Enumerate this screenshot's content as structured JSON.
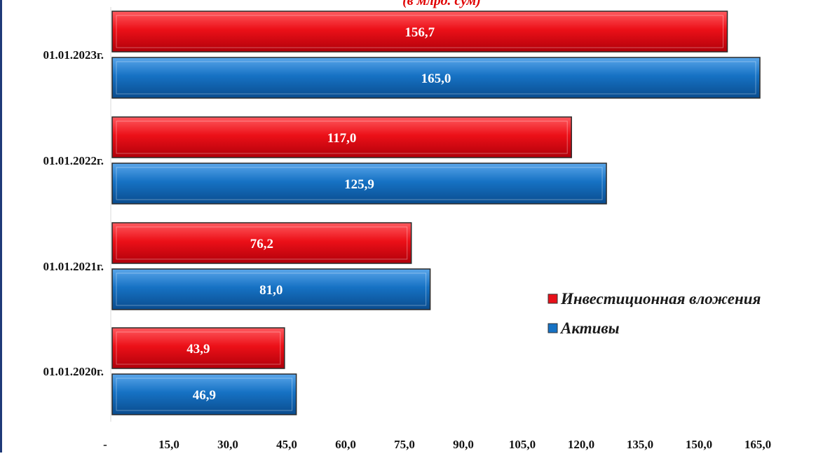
{
  "chart_data": {
    "type": "bar",
    "orientation": "horizontal",
    "subtitle": "(в млрд. сум)",
    "categories": [
      "01.01.2020г.",
      "01.01.2021г.",
      "01.01.2022г.",
      "01.01.2023г."
    ],
    "series": [
      {
        "name": "Инвестиционная вложения",
        "color": "#e8101a",
        "values": [
          43.9,
          76.2,
          117.0,
          156.7
        ],
        "labels": [
          "43,9",
          "76,2",
          "117,0",
          "156,7"
        ]
      },
      {
        "name": "Активы",
        "color": "#1672c4",
        "values": [
          46.9,
          81.0,
          125.9,
          165.0
        ],
        "labels": [
          "46,9",
          "81,0",
          "125,9",
          "165,0"
        ]
      }
    ],
    "xlim": [
      0,
      165
    ],
    "x_ticks": [
      0,
      15,
      30,
      45,
      60,
      75,
      90,
      105,
      120,
      135,
      150,
      165
    ],
    "x_tick_labels": [
      "-",
      "15,0",
      "30,0",
      "45,0",
      "60,0",
      "75,0",
      "90,0",
      "105,0",
      "120,0",
      "135,0",
      "150,0",
      "165,0"
    ],
    "grid": false,
    "legend_position": "right"
  }
}
